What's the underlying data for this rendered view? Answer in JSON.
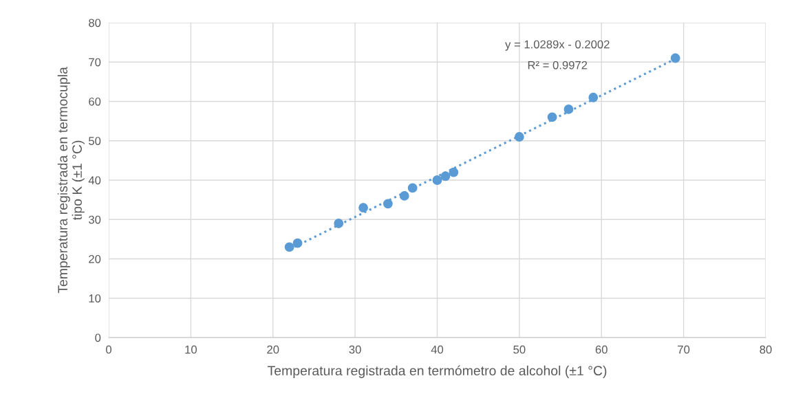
{
  "chart_data": {
    "type": "scatter",
    "xlabel": "Temperatura registrada en termómetro de alcohol (±1 °C)",
    "ylabel": "Temperatura registrada en termocupla tipo K (±1 °C)",
    "series": [
      {
        "color": "#5b9bd5",
        "marker": "circle",
        "x": [
          22,
          23,
          28,
          31,
          34,
          36,
          37,
          40,
          41,
          42,
          50,
          54,
          56,
          59,
          69
        ],
        "values": [
          23,
          24,
          29,
          33,
          34,
          36,
          38,
          40,
          41,
          42,
          51,
          56,
          58,
          61,
          71
        ]
      },
      {
        "type": "line",
        "color": "#5b9bd5",
        "line_style": "dotted",
        "x": [
          22,
          69
        ],
        "values": [
          22.4,
          70.8
        ]
      }
    ],
    "annotations": [
      "y = 1.0289x - 0.2002",
      "R² = 0.9972"
    ],
    "xlim": [
      0,
      80
    ],
    "ylim": [
      0,
      80
    ],
    "xticks": [
      0,
      10,
      20,
      30,
      40,
      50,
      60,
      70,
      80
    ],
    "yticks": [
      0,
      10,
      20,
      30,
      40,
      50,
      60,
      70,
      80
    ],
    "grid": true,
    "legend": false
  }
}
